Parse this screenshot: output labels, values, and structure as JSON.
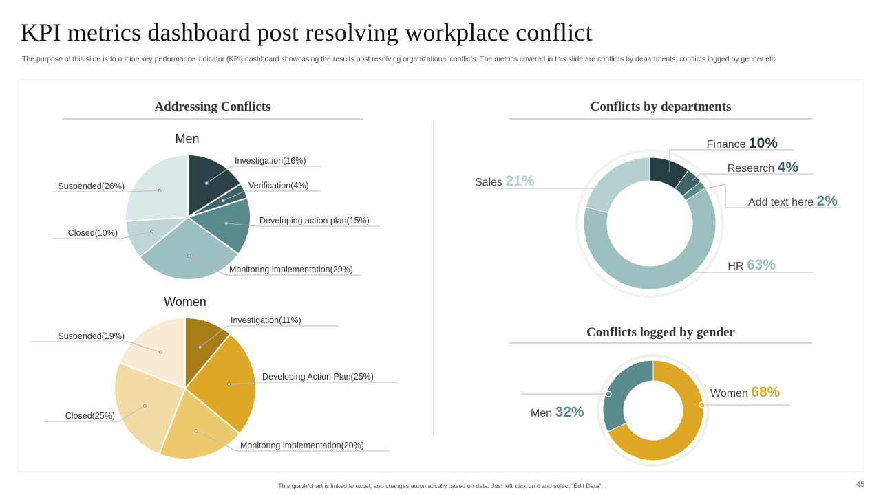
{
  "header": {
    "title": "KPI metrics dashboard post resolving workplace conflict",
    "subtitle": "The purpose of this slide is to outline key performance indicator (KPI) dashboard showcasing the results post resolving organizational conflicts. The metrics covered in this slide are conflicts by departments, conflicts logged by gender etc."
  },
  "sections": {
    "addressing": "Addressing  Conflicts",
    "departments": "Conflicts by departments",
    "gender": "Conflicts logged by gender"
  },
  "chart_data": [
    {
      "type": "pie",
      "title": "Men",
      "labels": [
        "Investigation",
        "Verification",
        "Developing  action plan",
        "Monitoring  implementation",
        "Closed",
        "Suspended"
      ],
      "values": [
        16,
        4,
        15,
        29,
        10,
        26
      ],
      "display": [
        "Investigation(16%)",
        "Verification(4%)",
        "Developing  action plan(15%)",
        "Monitoring  implementation(29%)",
        "Closed(10%)",
        "Suspended(26%)"
      ],
      "colors": [
        "#2b4347",
        "#3e6468",
        "#5a8a8c",
        "#9dbfc0",
        "#bed6d7",
        "#dbe7e8"
      ]
    },
    {
      "type": "pie",
      "title": "Women",
      "labels": [
        "Investigation",
        "Developing  Action Plan",
        "Monitoring  implementation",
        "Closed",
        "Suspended"
      ],
      "values": [
        11,
        25,
        20,
        25,
        19
      ],
      "display": [
        "Investigation(11%)",
        "Developing  Action Plan(25%)",
        "Monitoring  implementation(20%)",
        "Closed(25%)",
        "Suspended(19%)"
      ],
      "colors": [
        "#a87d17",
        "#dea726",
        "#edc96e",
        "#f2dca5",
        "#f9ecd4"
      ]
    },
    {
      "type": "pie",
      "subtype": "donut",
      "title": "Conflicts by departments",
      "labels": [
        "Finance",
        "Research",
        "Add text here",
        "HR",
        "Sales"
      ],
      "values": [
        10,
        4,
        2,
        63,
        21
      ],
      "value_labels": [
        "10%",
        "4%",
        "2%",
        "63%",
        "21%"
      ],
      "colors": [
        "#243e42",
        "#3e6468",
        "#5a8a8c",
        "#9dbfc0",
        "#b6d0d1"
      ]
    },
    {
      "type": "pie",
      "subtype": "donut",
      "title": "Conflicts logged by gender",
      "labels": [
        "Women",
        "Men"
      ],
      "values": [
        68,
        32
      ],
      "value_labels": [
        "68%",
        "32%"
      ],
      "colors": [
        "#dea726",
        "#5a8a8c"
      ]
    }
  ],
  "footer": {
    "note": "This graph/chart is linked to excel, and changes automatically based on data. Just left click on it and select “Edit Data”.",
    "page_number": "45"
  }
}
